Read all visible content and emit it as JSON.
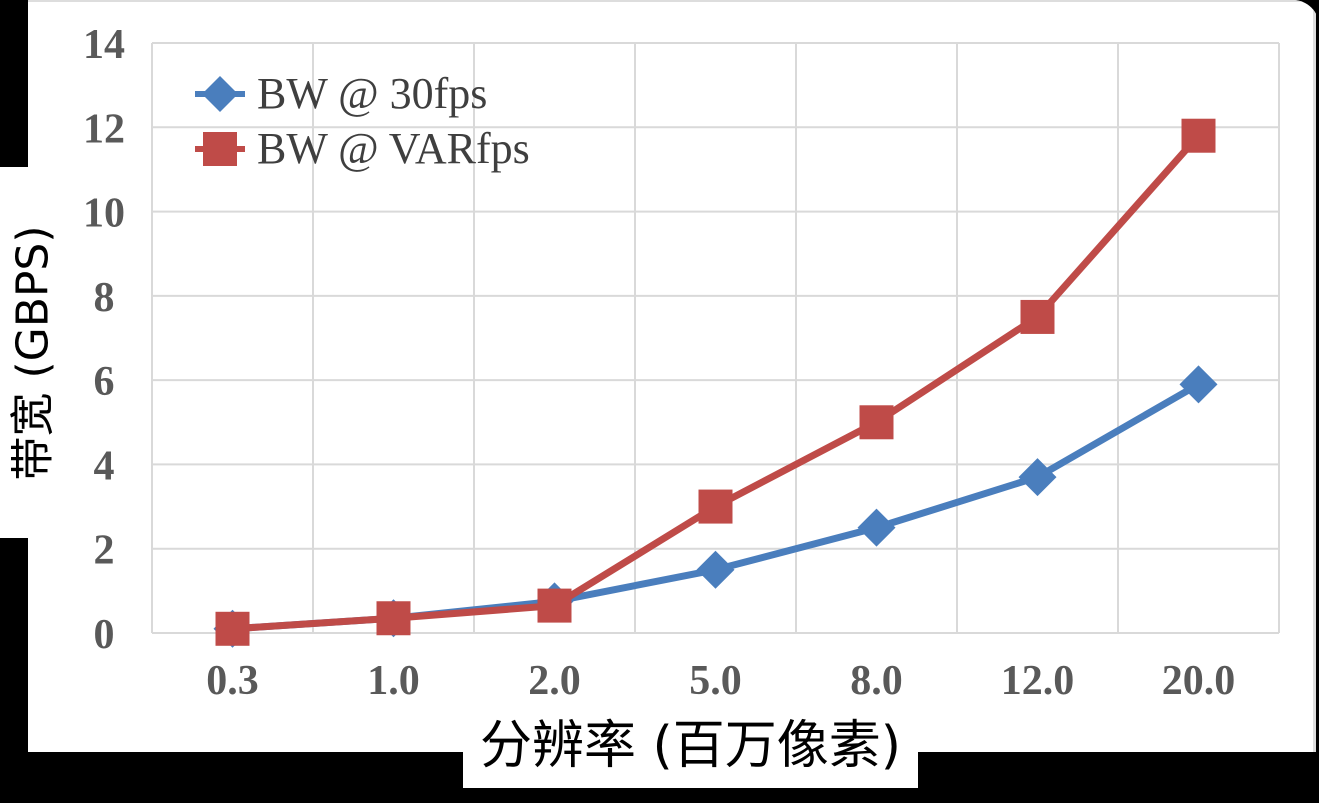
{
  "chart_data": {
    "type": "line",
    "categories": [
      "0.3",
      "1.0",
      "2.0",
      "5.0",
      "8.0",
      "12.0",
      "20.0"
    ],
    "series": [
      {
        "name": "BW @ 30fps",
        "marker": "diamond",
        "color": "#4A7EBD",
        "values": [
          0.1,
          0.35,
          0.75,
          1.5,
          2.5,
          3.7,
          5.9
        ]
      },
      {
        "name": "BW @ VARfps",
        "marker": "square",
        "color": "#BF4B48",
        "values": [
          0.1,
          0.35,
          0.65,
          3.0,
          5.0,
          7.5,
          11.8
        ]
      }
    ],
    "xlabel": "分辨率 (百万像素)",
    "ylabel": "带宽 (GBPS)",
    "ylim": [
      0,
      14
    ],
    "yticks": [
      0,
      2,
      4,
      6,
      8,
      10,
      12,
      14
    ],
    "grid": true,
    "legend_position": "top-left"
  },
  "colors": {
    "grid": "#D9D9D9",
    "tick_label": "#595959",
    "legend_text": "#3F3F3F",
    "axis_title": "#000000",
    "card_background": "#FFFFFF",
    "frame_background": "#000000",
    "card_border": "#DDDDDD"
  }
}
